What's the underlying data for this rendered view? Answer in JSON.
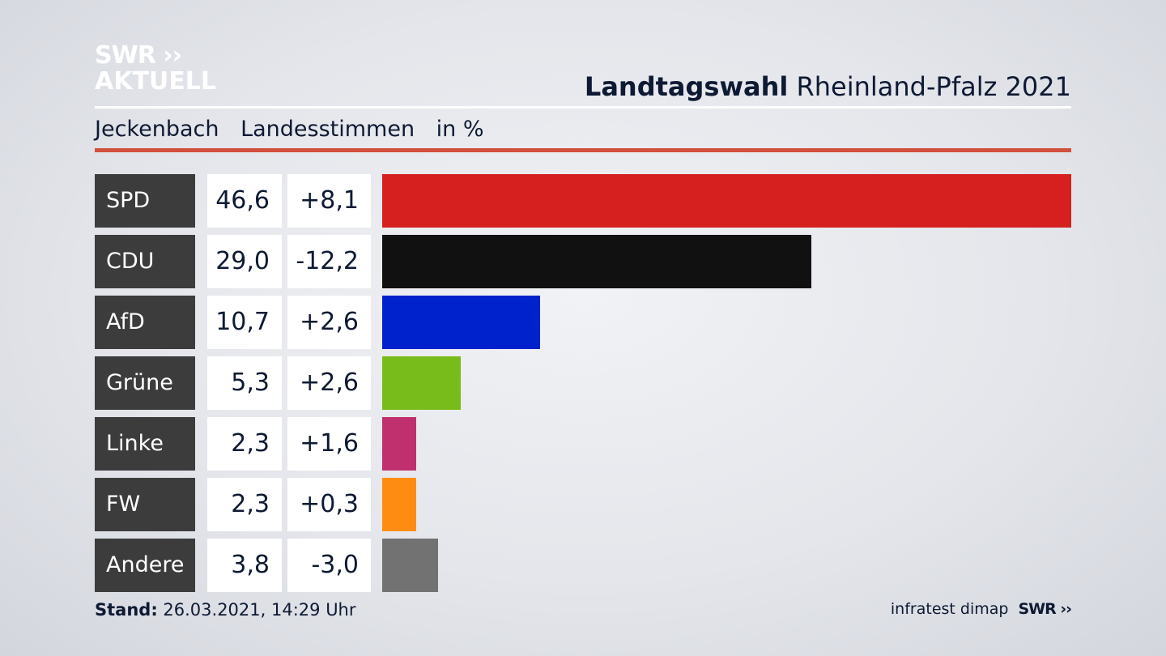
{
  "logo": {
    "line1": "SWR ››",
    "line2": "AKTUELL"
  },
  "header": {
    "title_bold": "Landtagswahl",
    "title_rest": "Rheinland-Pfalz 2021"
  },
  "subtitle": {
    "place": "Jeckenbach",
    "type": "Landesstimmen",
    "unit": "in %"
  },
  "footer": {
    "stand_label": "Stand:",
    "stand_value": "26.03.2021, 14:29 Uhr",
    "source": "infratest dimap",
    "brand": "SWR ››"
  },
  "rows": [
    {
      "party": "SPD",
      "value": "46,6",
      "diff": "+8,1"
    },
    {
      "party": "CDU",
      "value": "29,0",
      "diff": "-12,2"
    },
    {
      "party": "AfD",
      "value": "10,7",
      "diff": "+2,6"
    },
    {
      "party": "Grüne",
      "value": "5,3",
      "diff": "+2,6"
    },
    {
      "party": "Linke",
      "value": "2,3",
      "diff": "+1,6"
    },
    {
      "party": "FW",
      "value": "2,3",
      "diff": "+0,3"
    },
    {
      "party": "Andere",
      "value": "3,8",
      "diff": "-3,0"
    }
  ],
  "chart_data": {
    "type": "bar",
    "orientation": "horizontal",
    "title": "Landtagswahl Rheinland-Pfalz 2021",
    "subtitle": "Jeckenbach Landesstimmen in %",
    "categories": [
      "SPD",
      "CDU",
      "AfD",
      "Grüne",
      "Linke",
      "FW",
      "Andere"
    ],
    "values": [
      46.6,
      29.0,
      10.7,
      5.3,
      2.3,
      2.3,
      3.8
    ],
    "changes": [
      8.1,
      -12.2,
      2.6,
      2.6,
      1.6,
      0.3,
      -3.0
    ],
    "colors": [
      "#d62020",
      "#111111",
      "#0022cc",
      "#78bc1b",
      "#c0306f",
      "#ff8c12",
      "#727272"
    ],
    "xlim": [
      0,
      46.6
    ]
  }
}
